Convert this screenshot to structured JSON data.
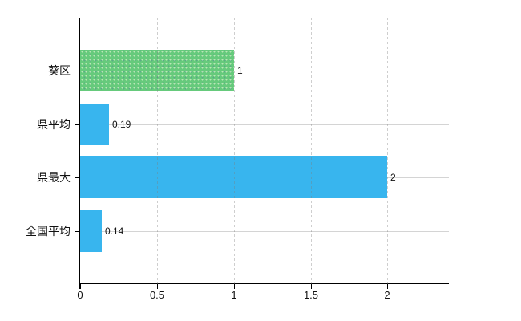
{
  "chart_data": {
    "type": "bar",
    "orientation": "horizontal",
    "title": "",
    "categories": [
      "葵区",
      "県平均",
      "県最大",
      "全国平均"
    ],
    "values": [
      1,
      0.19,
      2,
      0.14
    ],
    "data_labels": [
      "1",
      "0.19",
      "2",
      "0.14"
    ],
    "series": [
      {
        "name": "値",
        "values": [
          1,
          0.19,
          2,
          0.14
        ]
      }
    ],
    "bar_colors": [
      "#66ca7c",
      "#38b5ee",
      "#38b5ee",
      "#38b5ee"
    ],
    "bar_textures": [
      "dotted",
      "plain",
      "plain",
      "plain"
    ],
    "xticks": [
      0,
      0.5,
      1,
      1.5,
      2
    ],
    "xtick_labels": [
      "0",
      "0.5",
      "1",
      "1.5",
      "2"
    ],
    "xlim": [
      0,
      2.4
    ],
    "ylabel": "",
    "xlabel": "",
    "grid": true,
    "legend": false,
    "legend_position": "none"
  },
  "colors": {
    "green_bar": "#66ca7c",
    "blue_bar": "#38b5ee",
    "grid_line": "#d4d4d4",
    "axis_line": "#000000",
    "text": "#111111",
    "background": "#ffffff"
  }
}
